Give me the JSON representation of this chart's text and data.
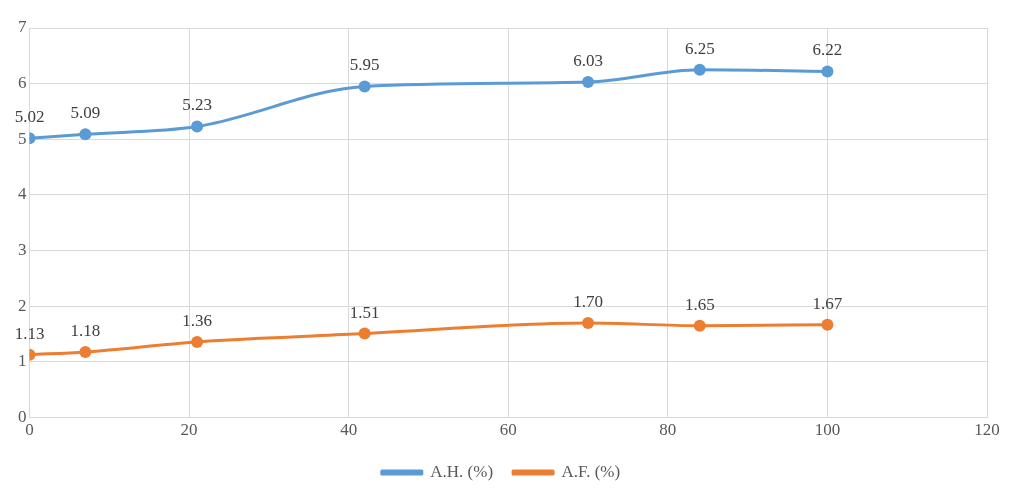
{
  "chart_data": {
    "type": "line",
    "x": [
      0,
      7,
      21,
      42,
      70,
      84,
      100
    ],
    "series": [
      {
        "name": "A.H. (%)",
        "color": "#5b9bd5",
        "values": [
          5.02,
          5.09,
          5.23,
          5.95,
          6.03,
          6.25,
          6.22
        ],
        "value_labels": [
          "5.02",
          "5.09",
          "5.23",
          "5.95",
          "6.03",
          "6.25",
          "6.22"
        ]
      },
      {
        "name": "A.F. (%)",
        "color": "#ed7d31",
        "values": [
          1.13,
          1.18,
          1.36,
          1.51,
          1.7,
          1.65,
          1.67
        ],
        "value_labels": [
          "1.13",
          "1.18",
          "1.36",
          "1.51",
          "1.70",
          "1.65",
          "1.67"
        ]
      }
    ],
    "xlim": [
      0,
      120
    ],
    "xticks": [
      0,
      20,
      40,
      60,
      80,
      100,
      120
    ],
    "ylim": [
      0,
      7
    ],
    "yticks": [
      0,
      1,
      2,
      3,
      4,
      5,
      6,
      7
    ],
    "grid": true,
    "legend": "bottom",
    "marker": "circle",
    "line_style": "solid"
  }
}
